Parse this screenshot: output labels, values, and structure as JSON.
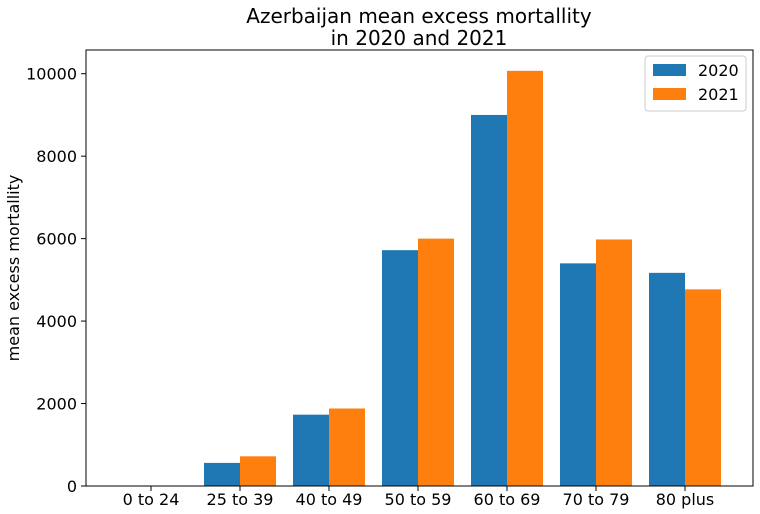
{
  "chart_data": {
    "type": "bar",
    "title": "Azerbaijan mean excess mortallity\nin 2020 and 2021",
    "xlabel": "",
    "ylabel": "mean excess mortallity",
    "categories": [
      "0 to 24",
      "25 to 39",
      "40 to 49",
      "50 to 59",
      "60 to 69",
      "70 to 79",
      "80 plus"
    ],
    "series": [
      {
        "name": "2020",
        "color": "#1f77b4",
        "values": [
          0,
          560,
          1730,
          5720,
          9000,
          5400,
          5170
        ]
      },
      {
        "name": "2021",
        "color": "#ff7f0e",
        "values": [
          0,
          720,
          1880,
          6000,
          10070,
          5980,
          4770
        ]
      }
    ],
    "ylim": [
      0,
      10575
    ],
    "yticks": [
      0,
      2000,
      4000,
      6000,
      8000,
      10000
    ],
    "grid": false,
    "legend_position": "top-right"
  }
}
